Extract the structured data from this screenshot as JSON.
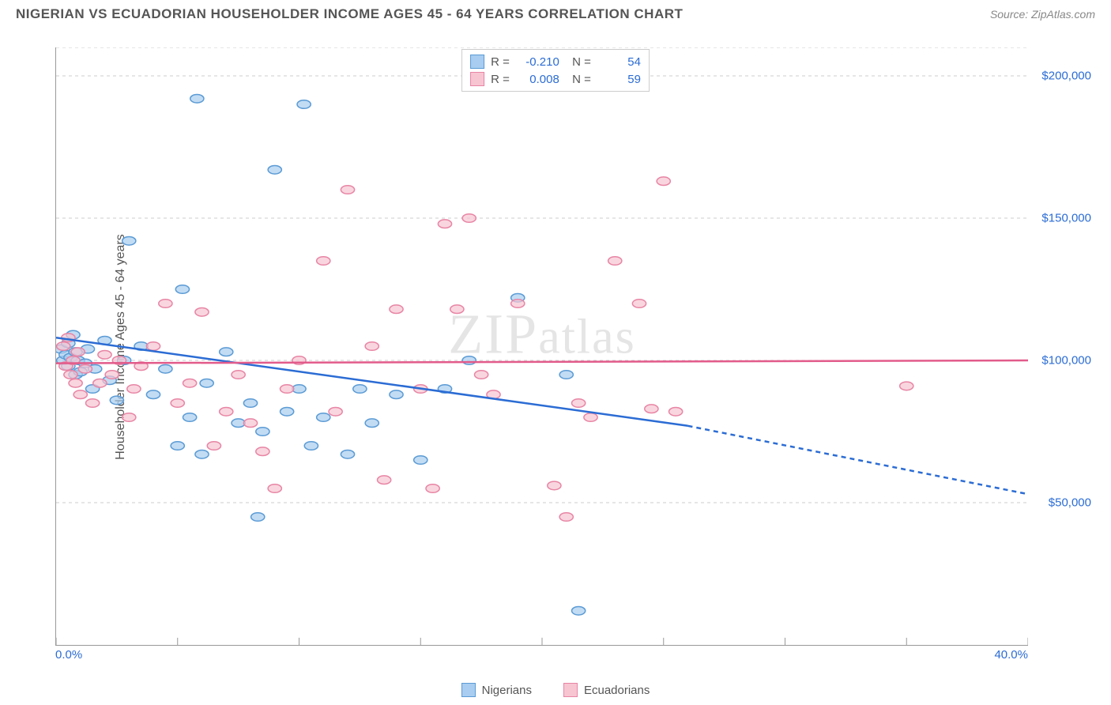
{
  "title": "NIGERIAN VS ECUADORIAN HOUSEHOLDER INCOME AGES 45 - 64 YEARS CORRELATION CHART",
  "source": "Source: ZipAtlas.com",
  "ylabel": "Householder Income Ages 45 - 64 years",
  "watermark": "ZIPatlas",
  "chart": {
    "type": "scatter",
    "background_color": "#ffffff",
    "grid_color": "#cccccc",
    "grid_dash": "4,4",
    "axis_color": "#999999",
    "ytick_label_color": "#2b6cd4",
    "xtick_label_color": "#2b6cd4",
    "marker_radius": 7,
    "marker_stroke_width": 1.5,
    "trend_line_width": 2.5,
    "trend_dash": "6,5",
    "xlim": [
      0,
      40
    ],
    "ylim": [
      0,
      210000
    ],
    "y_gridlines": [
      50000,
      100000,
      150000,
      200000
    ],
    "y_tick_labels": [
      "$50,000",
      "$100,000",
      "$150,000",
      "$200,000"
    ],
    "x_tick_positions": [
      0,
      5,
      10,
      15,
      20,
      25,
      30,
      35,
      40
    ],
    "x_start_label": "0.0%",
    "x_end_label": "40.0%",
    "series": [
      {
        "name": "Nigerians",
        "fill_color": "#a8cdf0",
        "stroke_color": "#5b9bd5",
        "trend_color": "#2b6cd4",
        "r": "-0.210",
        "n": "54",
        "trend": {
          "x1": 0,
          "y1": 108000,
          "x2_solid": 26,
          "y2_solid": 77000,
          "x2": 40,
          "y2": 53000
        },
        "points": [
          [
            0.2,
            104000
          ],
          [
            0.3,
            100000
          ],
          [
            0.4,
            102000
          ],
          [
            0.5,
            98000
          ],
          [
            0.5,
            106000
          ],
          [
            0.6,
            101000
          ],
          [
            0.7,
            109000
          ],
          [
            0.8,
            95000
          ],
          [
            0.8,
            103000
          ],
          [
            0.9,
            100000
          ],
          [
            1.0,
            96000
          ],
          [
            1.2,
            99000
          ],
          [
            1.3,
            104000
          ],
          [
            1.5,
            90000
          ],
          [
            1.6,
            97000
          ],
          [
            2.0,
            107000
          ],
          [
            2.2,
            93000
          ],
          [
            2.5,
            86000
          ],
          [
            2.8,
            100000
          ],
          [
            3.0,
            142000
          ],
          [
            3.5,
            105000
          ],
          [
            4.0,
            88000
          ],
          [
            4.5,
            97000
          ],
          [
            5.0,
            70000
          ],
          [
            5.2,
            125000
          ],
          [
            5.5,
            80000
          ],
          [
            5.8,
            192000
          ],
          [
            6.0,
            67000
          ],
          [
            6.2,
            92000
          ],
          [
            7.0,
            103000
          ],
          [
            7.5,
            78000
          ],
          [
            8.0,
            85000
          ],
          [
            8.3,
            45000
          ],
          [
            8.5,
            75000
          ],
          [
            9.0,
            167000
          ],
          [
            9.5,
            82000
          ],
          [
            10.0,
            90000
          ],
          [
            10.2,
            190000
          ],
          [
            10.5,
            70000
          ],
          [
            11.0,
            80000
          ],
          [
            12.0,
            67000
          ],
          [
            12.5,
            90000
          ],
          [
            13.0,
            78000
          ],
          [
            14.0,
            88000
          ],
          [
            15.0,
            65000
          ],
          [
            16.0,
            90000
          ],
          [
            17.0,
            100000
          ],
          [
            19.0,
            122000
          ],
          [
            21.5,
            12000
          ],
          [
            21.0,
            95000
          ]
        ]
      },
      {
        "name": "Ecuadorians",
        "fill_color": "#f7c5d2",
        "stroke_color": "#e885a5",
        "trend_color": "#e25b8a",
        "r": "0.008",
        "n": "59",
        "trend": {
          "x1": 0,
          "y1": 99000,
          "x2_solid": 40,
          "y2_solid": 100000,
          "x2": 40,
          "y2": 100000
        },
        "points": [
          [
            0.3,
            105000
          ],
          [
            0.4,
            98000
          ],
          [
            0.5,
            108000
          ],
          [
            0.6,
            95000
          ],
          [
            0.7,
            100000
          ],
          [
            0.8,
            92000
          ],
          [
            0.9,
            103000
          ],
          [
            1.0,
            88000
          ],
          [
            1.2,
            97000
          ],
          [
            1.5,
            85000
          ],
          [
            1.8,
            92000
          ],
          [
            2.0,
            102000
          ],
          [
            2.3,
            95000
          ],
          [
            2.6,
            100000
          ],
          [
            3.0,
            80000
          ],
          [
            3.2,
            90000
          ],
          [
            3.5,
            98000
          ],
          [
            4.0,
            105000
          ],
          [
            4.5,
            120000
          ],
          [
            5.0,
            85000
          ],
          [
            5.5,
            92000
          ],
          [
            6.0,
            117000
          ],
          [
            6.5,
            70000
          ],
          [
            7.0,
            82000
          ],
          [
            7.5,
            95000
          ],
          [
            8.0,
            78000
          ],
          [
            8.5,
            68000
          ],
          [
            9.0,
            55000
          ],
          [
            9.5,
            90000
          ],
          [
            10.0,
            100000
          ],
          [
            11.0,
            135000
          ],
          [
            11.5,
            82000
          ],
          [
            12.0,
            160000
          ],
          [
            13.0,
            105000
          ],
          [
            13.5,
            58000
          ],
          [
            14.0,
            118000
          ],
          [
            15.0,
            90000
          ],
          [
            15.5,
            55000
          ],
          [
            16.0,
            148000
          ],
          [
            16.5,
            118000
          ],
          [
            17.0,
            150000
          ],
          [
            17.5,
            95000
          ],
          [
            18.0,
            88000
          ],
          [
            19.0,
            120000
          ],
          [
            20.5,
            56000
          ],
          [
            21.0,
            45000
          ],
          [
            21.5,
            85000
          ],
          [
            22.0,
            80000
          ],
          [
            23.0,
            135000
          ],
          [
            24.0,
            120000
          ],
          [
            24.5,
            83000
          ],
          [
            25.0,
            163000
          ],
          [
            25.5,
            82000
          ],
          [
            35.0,
            91000
          ]
        ]
      }
    ]
  },
  "bottom_legend": [
    {
      "label": "Nigerians",
      "fill": "#a8cdf0",
      "stroke": "#5b9bd5"
    },
    {
      "label": "Ecuadorians",
      "fill": "#f7c5d2",
      "stroke": "#e885a5"
    }
  ]
}
